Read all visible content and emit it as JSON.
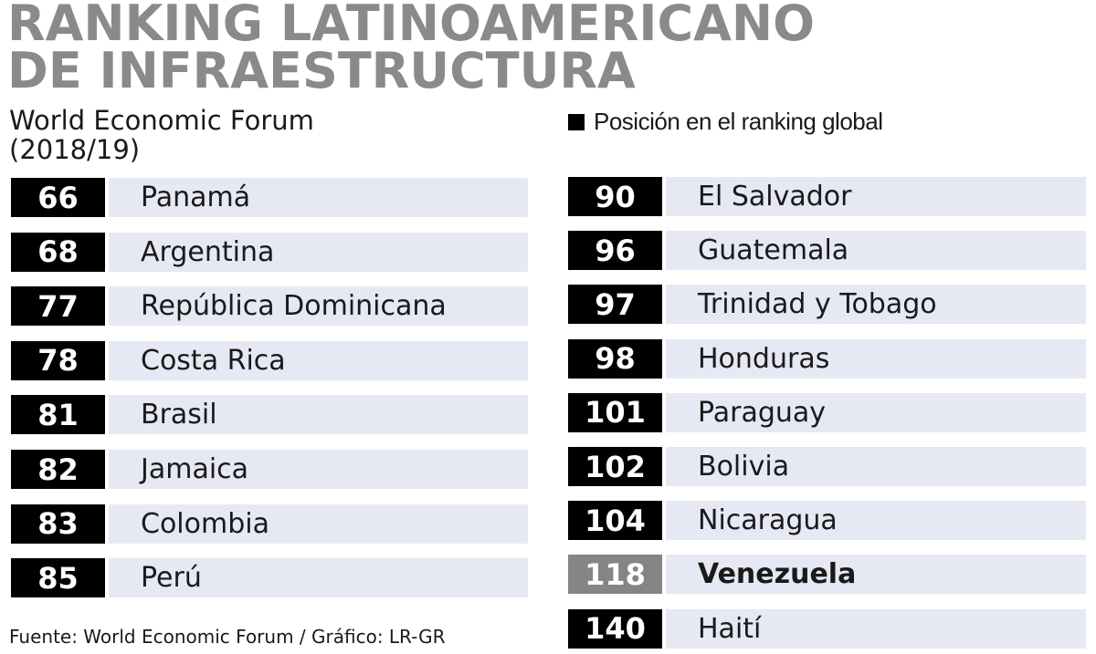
{
  "header": {
    "title_line1": "RANKING LATINOAMERICANO",
    "title_line2": "DE INFRAESTRUCTURA",
    "source_line1": "World Economic Forum",
    "source_line2": "(2018/19)"
  },
  "legend": {
    "label": "Posición en el ranking global",
    "swatch_color": "#000000"
  },
  "colors": {
    "rank_bg": "#000000",
    "rank_highlight_bg": "#858585",
    "row_bg": "#e6e8f3",
    "title": "#8a8a8a"
  },
  "chart_data": {
    "type": "table",
    "title": "RANKING LATINOAMERICANO DE INFRAESTRUCTURA",
    "subtitle": "World Economic Forum (2018/19)",
    "value_label": "Posición en el ranking global",
    "columns": [
      [
        {
          "rank": "66",
          "country": "Panamá"
        },
        {
          "rank": "68",
          "country": "Argentina"
        },
        {
          "rank": "77",
          "country": "República Dominicana"
        },
        {
          "rank": "78",
          "country": "Costa Rica"
        },
        {
          "rank": "81",
          "country": "Brasil"
        },
        {
          "rank": "82",
          "country": "Jamaica"
        },
        {
          "rank": "83",
          "country": "Colombia"
        },
        {
          "rank": "85",
          "country": "Perú"
        }
      ],
      [
        {
          "rank": "90",
          "country": "El Salvador"
        },
        {
          "rank": "96",
          "country": "Guatemala"
        },
        {
          "rank": "97",
          "country": "Trinidad y Tobago"
        },
        {
          "rank": "98",
          "country": "Honduras"
        },
        {
          "rank": "101",
          "country": "Paraguay"
        },
        {
          "rank": "102",
          "country": "Bolivia"
        },
        {
          "rank": "104",
          "country": "Nicaragua"
        },
        {
          "rank": "118",
          "country": "Venezuela",
          "highlight": true
        },
        {
          "rank": "140",
          "country": "Haití"
        }
      ]
    ]
  },
  "footer": {
    "text": "Fuente: World Economic Forum / Gráfico: LR-GR"
  }
}
